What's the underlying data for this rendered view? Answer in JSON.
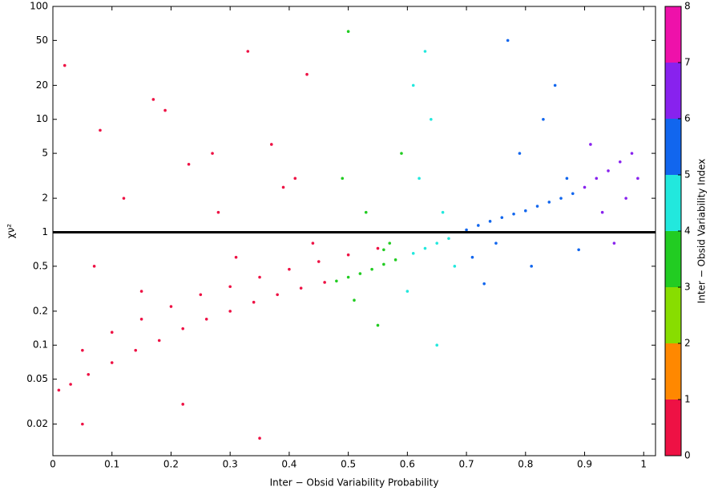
{
  "chart_data": {
    "type": "scatter",
    "xlabel": "Inter − Obsid Variability Probability",
    "ylabel": "χν²",
    "xlim": [
      0,
      1.02
    ],
    "ylim": [
      0.0105,
      100
    ],
    "yscale": "log",
    "xticks": [
      0,
      0.1,
      0.2,
      0.3,
      0.4,
      0.5,
      0.6,
      0.7,
      0.8,
      0.9,
      1
    ],
    "yticks": [
      0.02,
      0.05,
      0.1,
      0.2,
      0.5,
      1,
      2,
      5,
      10,
      20,
      50,
      100
    ],
    "hline": 1,
    "series": [
      {
        "color": "#ee1144",
        "x": [
          0.01,
          0.03,
          0.06,
          0.1,
          0.14,
          0.18,
          0.22,
          0.26,
          0.3,
          0.34,
          0.38,
          0.42,
          0.46,
          0.05,
          0.1,
          0.15,
          0.2,
          0.25,
          0.3,
          0.35,
          0.4,
          0.45,
          0.5,
          0.55,
          0.02,
          0.08,
          0.12,
          0.17,
          0.23,
          0.28,
          0.33,
          0.37,
          0.41,
          0.44,
          0.07,
          0.19,
          0.31,
          0.43,
          0.15,
          0.27,
          0.39,
          0.05,
          0.22,
          0.35
        ],
        "values": [
          0.04,
          0.045,
          0.055,
          0.07,
          0.09,
          0.11,
          0.14,
          0.17,
          0.2,
          0.24,
          0.28,
          0.32,
          0.36,
          0.09,
          0.13,
          0.17,
          0.22,
          0.28,
          0.33,
          0.4,
          0.47,
          0.55,
          0.63,
          0.72,
          30,
          8,
          2,
          15,
          4,
          1.5,
          40,
          6,
          3,
          0.8,
          0.5,
          12,
          0.6,
          25,
          0.3,
          5,
          2.5,
          0.02,
          0.03,
          0.015
        ]
      },
      {
        "color": "#22cc22",
        "x": [
          0.48,
          0.5,
          0.52,
          0.54,
          0.56,
          0.58,
          0.49,
          0.53,
          0.57,
          0.51,
          0.55,
          0.59,
          0.5,
          0.56
        ],
        "values": [
          0.37,
          0.4,
          0.43,
          0.47,
          0.52,
          0.57,
          3,
          1.5,
          0.8,
          0.25,
          0.15,
          5,
          60,
          0.7
        ]
      },
      {
        "color": "#22e8dd",
        "x": [
          0.61,
          0.63,
          0.65,
          0.67,
          0.62,
          0.64,
          0.66,
          0.6,
          0.68,
          0.63,
          0.65,
          0.61
        ],
        "values": [
          0.65,
          0.72,
          0.8,
          0.88,
          3,
          10,
          1.5,
          0.3,
          0.5,
          40,
          0.1,
          20
        ]
      },
      {
        "color": "#1166ee",
        "x": [
          0.7,
          0.72,
          0.74,
          0.76,
          0.78,
          0.8,
          0.82,
          0.84,
          0.86,
          0.88,
          0.71,
          0.75,
          0.79,
          0.83,
          0.87,
          0.73,
          0.81,
          0.85,
          0.77,
          0.89
        ],
        "values": [
          1.05,
          1.15,
          1.25,
          1.35,
          1.45,
          1.55,
          1.7,
          1.85,
          2,
          2.2,
          0.6,
          0.8,
          5,
          10,
          3,
          0.35,
          0.5,
          20,
          50,
          0.7
        ]
      },
      {
        "color": "#8822ee",
        "x": [
          0.9,
          0.92,
          0.94,
          0.96,
          0.98,
          0.93,
          0.97,
          0.91,
          0.95,
          0.99
        ],
        "values": [
          2.5,
          3,
          3.5,
          4.2,
          5,
          1.5,
          2,
          6,
          0.8,
          3
        ]
      }
    ],
    "colorbar": {
      "label": "Inter − Obsid Variability Index",
      "ticks": [
        0,
        1,
        2,
        3,
        4,
        5,
        6,
        7,
        8
      ],
      "colors": [
        "#ee1144",
        "#ff8800",
        "#88dd00",
        "#22cc22",
        "#22e8dd",
        "#1166ee",
        "#8822ee",
        "#ee11aa"
      ]
    }
  }
}
